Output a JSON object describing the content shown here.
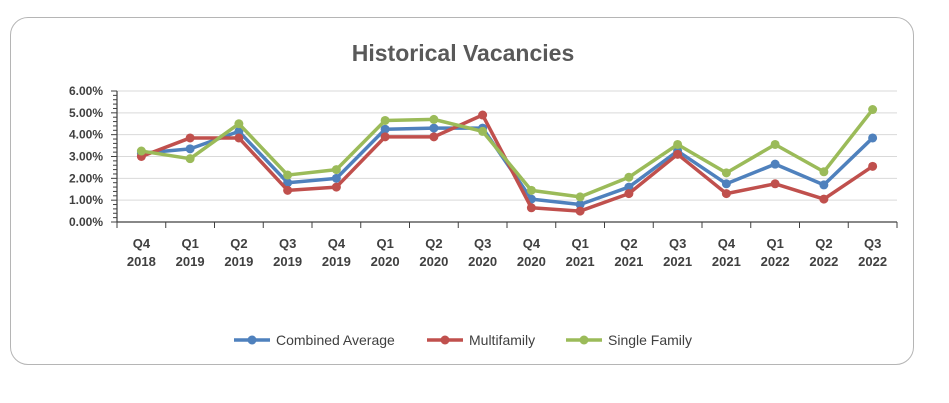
{
  "chart_data": {
    "type": "line",
    "title": "Historical Vacancies",
    "xlabel": "",
    "ylabel": "",
    "ylim": [
      0,
      6
    ],
    "y_ticks": [
      "0.00%",
      "1.00%",
      "2.00%",
      "3.00%",
      "4.00%",
      "5.00%",
      "6.00%"
    ],
    "grid": true,
    "legend": "bottom",
    "categories": [
      [
        "Q4",
        "2018"
      ],
      [
        "Q1",
        "2019"
      ],
      [
        "Q2",
        "2019"
      ],
      [
        "Q3",
        "2019"
      ],
      [
        "Q4",
        "2019"
      ],
      [
        "Q1",
        "2020"
      ],
      [
        "Q2",
        "2020"
      ],
      [
        "Q3",
        "2020"
      ],
      [
        "Q4",
        "2020"
      ],
      [
        "Q1",
        "2021"
      ],
      [
        "Q2",
        "2021"
      ],
      [
        "Q3",
        "2021"
      ],
      [
        "Q4",
        "2021"
      ],
      [
        "Q1",
        "2022"
      ],
      [
        "Q2",
        "2022"
      ],
      [
        "Q3",
        "2022"
      ]
    ],
    "series": [
      {
        "name": "Combined Average",
        "color": "#4f81bd",
        "values": [
          3.15,
          3.35,
          4.15,
          1.8,
          2.0,
          4.25,
          4.3,
          4.3,
          1.05,
          0.8,
          1.6,
          3.25,
          1.75,
          2.65,
          1.7,
          3.85
        ]
      },
      {
        "name": "Multifamily",
        "color": "#c0504d",
        "values": [
          3.0,
          3.85,
          3.85,
          1.45,
          1.6,
          3.9,
          3.9,
          4.9,
          0.65,
          0.5,
          1.3,
          3.1,
          1.3,
          1.75,
          1.05,
          2.55
        ]
      },
      {
        "name": "Single Family",
        "color": "#9bbb59",
        "values": [
          3.25,
          2.9,
          4.5,
          2.15,
          2.4,
          4.65,
          4.7,
          4.15,
          1.45,
          1.15,
          2.05,
          3.55,
          2.25,
          3.55,
          2.3,
          5.15
        ]
      }
    ]
  }
}
